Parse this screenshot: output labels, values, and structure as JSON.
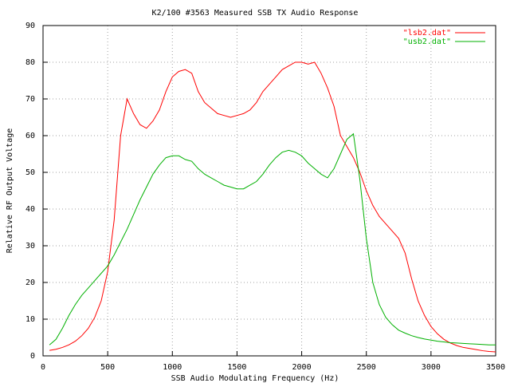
{
  "chart_data": {
    "type": "line",
    "title": "K2/100 #3563 Measured SSB TX Audio Response",
    "xlabel": "SSB Audio Modulating Frequency (Hz)",
    "ylabel": "Relative RF Output Voltage",
    "xlim": [
      0,
      3500
    ],
    "ylim": [
      0,
      90
    ],
    "xticks": [
      0,
      500,
      1000,
      1500,
      2000,
      2500,
      3000,
      3500
    ],
    "yticks": [
      0,
      10,
      20,
      30,
      40,
      50,
      60,
      70,
      80,
      90
    ],
    "grid": true,
    "legend": "top-right",
    "x": [
      50,
      100,
      150,
      200,
      250,
      300,
      350,
      400,
      450,
      500,
      550,
      600,
      650,
      700,
      750,
      800,
      850,
      900,
      950,
      1000,
      1050,
      1100,
      1150,
      1200,
      1250,
      1300,
      1350,
      1400,
      1450,
      1500,
      1550,
      1600,
      1650,
      1700,
      1750,
      1800,
      1850,
      1900,
      1950,
      2000,
      2050,
      2100,
      2150,
      2200,
      2250,
      2300,
      2350,
      2400,
      2450,
      2500,
      2550,
      2600,
      2650,
      2700,
      2750,
      2800,
      2850,
      2900,
      2950,
      3000,
      3050,
      3100,
      3150,
      3200,
      3250,
      3300,
      3350,
      3400,
      3450,
      3500
    ],
    "series": [
      {
        "name": "\"lsb2.dat\"",
        "color": "#ff0000",
        "values": [
          1.5,
          1.8,
          2.3,
          3,
          4,
          5.5,
          7.5,
          10.5,
          15,
          23,
          37,
          60,
          70,
          66,
          63,
          62,
          64,
          67,
          72,
          76,
          77.5,
          78,
          77,
          72,
          69,
          67.5,
          66,
          65.5,
          65,
          65.5,
          66,
          67,
          69,
          72,
          74,
          76,
          78,
          79,
          80,
          80,
          79.5,
          80,
          77,
          73,
          68,
          60,
          57,
          54,
          50,
          45,
          41,
          38,
          36,
          34,
          32,
          28,
          21,
          15,
          11,
          8,
          6,
          4.5,
          3.5,
          2.8,
          2.3,
          2,
          1.7,
          1.4,
          1.2,
          1.1
        ]
      },
      {
        "name": "\"usb2.dat\"",
        "color": "#00b000",
        "values": [
          3,
          4.5,
          7.5,
          11,
          14,
          16.5,
          18.5,
          20.5,
          22.5,
          24.5,
          27.5,
          31,
          34.5,
          38.5,
          42.5,
          46,
          49.5,
          52,
          54,
          54.5,
          54.5,
          53.5,
          53,
          51,
          49.5,
          48.5,
          47.5,
          46.5,
          46,
          45.5,
          45.5,
          46.5,
          47.5,
          49.5,
          52,
          54,
          55.5,
          56,
          55.5,
          54.5,
          52.5,
          51,
          49.5,
          48.5,
          51,
          55,
          59,
          60.5,
          48,
          32,
          20,
          14,
          10.5,
          8.5,
          7,
          6.2,
          5.5,
          5,
          4.6,
          4.3,
          4,
          3.8,
          3.6,
          3.5,
          3.4,
          3.3,
          3.2,
          3.1,
          3,
          3
        ]
      }
    ]
  }
}
